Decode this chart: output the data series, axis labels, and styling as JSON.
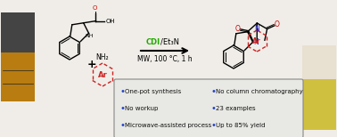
{
  "background_color": "#f0ede8",
  "reagent_cdi": "CDI",
  "reagent_cdi_color": "#22aa00",
  "reagent_rest": "/Et₃N",
  "conditions": "MW, 100 °C, 1 h",
  "bullets_left": [
    "One-pot synthesis",
    "No workup",
    "Microwave-assisted process"
  ],
  "bullets_right": [
    "No column chromatography",
    "23 examples",
    "Up to 85% yield"
  ],
  "bullet_color": "#2244cc",
  "text_color": "#111111",
  "box_facecolor": "#e8e8e4",
  "box_edgecolor": "#888888",
  "red_color": "#cc2222",
  "n_color": "#2222cc",
  "o_color": "#cc0000",
  "green_color": "#22aa00",
  "black": "#000000",
  "photo_left_top": "#555555",
  "photo_left_bot": "#c8900a",
  "photo_right_top": "#d8d0c0",
  "photo_right_bot": "#d4c050",
  "lw": 1.0,
  "lw_thin": 0.7
}
